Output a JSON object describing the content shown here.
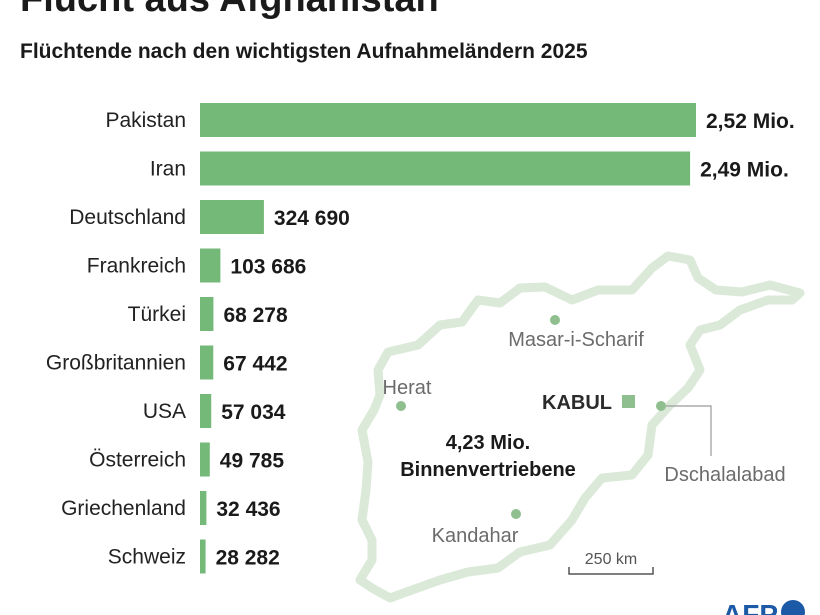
{
  "header": {
    "title": "Flucht aus Afghanistan",
    "subtitle": "Flüchtende nach den wichtigsten Aufnahmeländern 2025"
  },
  "chart_data": {
    "type": "bar",
    "orientation": "horizontal",
    "title": "Flucht aus Afghanistan",
    "subtitle": "Flüchtende nach den wichtigsten Aufnahmeländern 2025",
    "categories": [
      "Pakistan",
      "Iran",
      "Deutschland",
      "Frankreich",
      "Türkei",
      "Großbritannien",
      "USA",
      "Österreich",
      "Griechenland",
      "Schweiz"
    ],
    "values": [
      2520000,
      2490000,
      324690,
      103686,
      68278,
      67442,
      57034,
      49785,
      32436,
      28282
    ],
    "value_labels": [
      "2,52 Mio.",
      "2,49 Mio.",
      "324 690",
      "103 686",
      "68 278",
      "67 442",
      "57 034",
      "49 785",
      "32 436",
      "28 282"
    ],
    "bar_color": "#75b979",
    "grid": false,
    "legend": "none"
  },
  "map": {
    "outline_color": "#dbe9d9",
    "marker_color": "#8fbf8f",
    "cities": [
      {
        "name": "Masar-i-Scharif"
      },
      {
        "name": "Herat"
      },
      {
        "name": "Kandahar"
      },
      {
        "name": "Dschalalabad"
      }
    ],
    "capital": "KABUL",
    "idp_value": "4,23 Mio.",
    "idp_label": "Binnenvertriebene",
    "scale_label": "250 km"
  }
}
